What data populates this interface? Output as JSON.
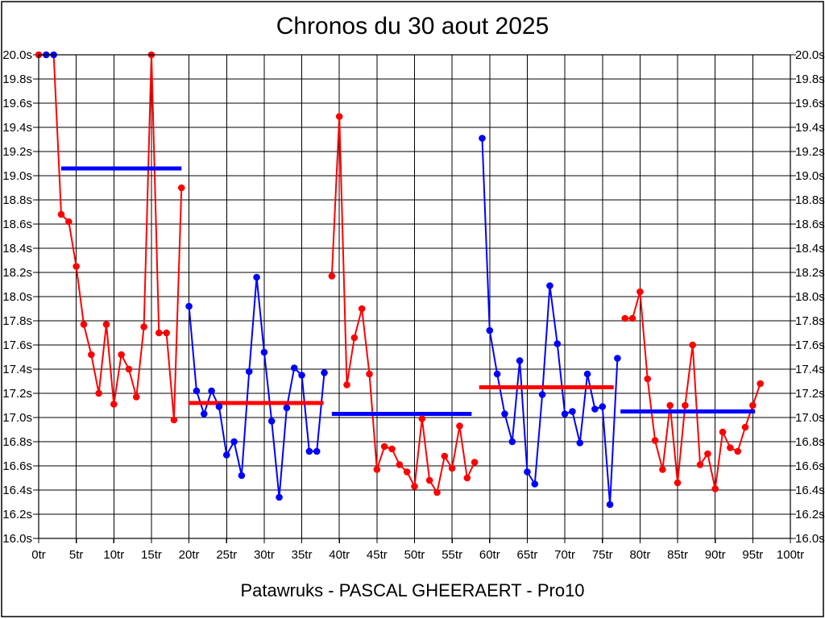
{
  "header": {
    "title": "Chronos du 30 aout 2025"
  },
  "footer": {
    "caption": "Patawruks - PASCAL GHEERAERT - Pro10"
  },
  "chart_data": {
    "type": "line",
    "title": "Chronos du 30 aout 2025",
    "xlabel": "",
    "ylabel": "",
    "x_unit": "tr",
    "y_unit": "s",
    "xlim": [
      0,
      100
    ],
    "ylim": [
      16.0,
      20.0
    ],
    "grid": true,
    "legend": "none",
    "x_tick_labels": [
      "0tr",
      "5tr",
      "10tr",
      "15tr",
      "20tr",
      "25tr",
      "30tr",
      "35tr",
      "40tr",
      "45tr",
      "50tr",
      "55tr",
      "60tr",
      "65tr",
      "70tr",
      "75tr",
      "80tr",
      "85tr",
      "90tr",
      "95tr",
      "100tr"
    ],
    "y_tick_labels": [
      "20.0s",
      "19.8s",
      "19.6s",
      "19.4s",
      "19.2s",
      "19.0s",
      "18.8s",
      "18.6s",
      "18.4s",
      "18.2s",
      "18.0s",
      "17.8s",
      "17.6s",
      "17.4s",
      "17.2s",
      "17.0s",
      "16.8s",
      "16.6s",
      "16.4s",
      "16.2s",
      "16.0s"
    ],
    "colors": {
      "red": "#ff0000",
      "blue": "#0000ff",
      "grid": "#000000"
    },
    "series": [
      {
        "name": "stint-1",
        "color": "red",
        "start_lap": 0,
        "values": [
          20.0,
          20.0,
          20.0,
          18.68,
          18.62,
          18.25,
          17.77,
          17.52,
          17.2,
          17.77,
          17.11,
          17.52,
          17.4,
          17.17,
          17.75,
          20.0,
          17.7,
          17.7,
          16.98,
          18.9
        ],
        "point_color_overrides": {
          "1": "blue",
          "2": "blue"
        }
      },
      {
        "name": "stint-2",
        "color": "blue",
        "start_lap": 20,
        "values": [
          17.92,
          17.22,
          17.03,
          17.22,
          17.09,
          16.69,
          16.8,
          16.52,
          17.38,
          18.16,
          17.54,
          16.97,
          16.34,
          17.08,
          17.41,
          17.35,
          16.72,
          16.72,
          17.37
        ]
      },
      {
        "name": "stint-3",
        "color": "red",
        "start_lap": 39,
        "values": [
          18.17,
          19.49,
          17.27,
          17.66,
          17.9,
          17.36,
          16.57,
          16.76,
          16.74,
          16.61,
          16.55,
          16.43,
          16.99,
          16.48,
          16.38,
          16.68,
          16.58,
          16.93,
          16.5,
          16.63
        ]
      },
      {
        "name": "stint-4",
        "color": "blue",
        "start_lap": 59,
        "values": [
          19.31,
          17.72,
          17.36,
          17.03,
          16.8,
          17.47,
          16.55,
          16.45,
          17.19,
          18.09,
          17.61,
          17.03,
          17.05,
          16.79,
          17.36,
          17.07,
          17.09,
          16.28,
          17.49
        ]
      },
      {
        "name": "stint-5",
        "color": "red",
        "start_lap": 78,
        "values": [
          17.82,
          17.82,
          18.04,
          17.32,
          16.81,
          16.57,
          17.1,
          16.46,
          17.1,
          17.6,
          16.61,
          16.7,
          16.41,
          16.88,
          16.75,
          16.72,
          16.92,
          17.1,
          17.28
        ]
      }
    ],
    "average_lines": [
      {
        "name": "avg-stint-1",
        "color": "blue",
        "from_lap": 3.0,
        "to_lap": 19.0,
        "value": 19.06
      },
      {
        "name": "avg-stint-2",
        "color": "red",
        "from_lap": 19.9,
        "to_lap": 37.9,
        "value": 17.12
      },
      {
        "name": "avg-stint-3",
        "color": "blue",
        "from_lap": 39.0,
        "to_lap": 57.6,
        "value": 17.03
      },
      {
        "name": "avg-stint-4",
        "color": "red",
        "from_lap": 58.6,
        "to_lap": 76.5,
        "value": 17.25
      },
      {
        "name": "avg-stint-5",
        "color": "blue",
        "from_lap": 77.4,
        "to_lap": 95.3,
        "value": 17.05
      }
    ]
  }
}
